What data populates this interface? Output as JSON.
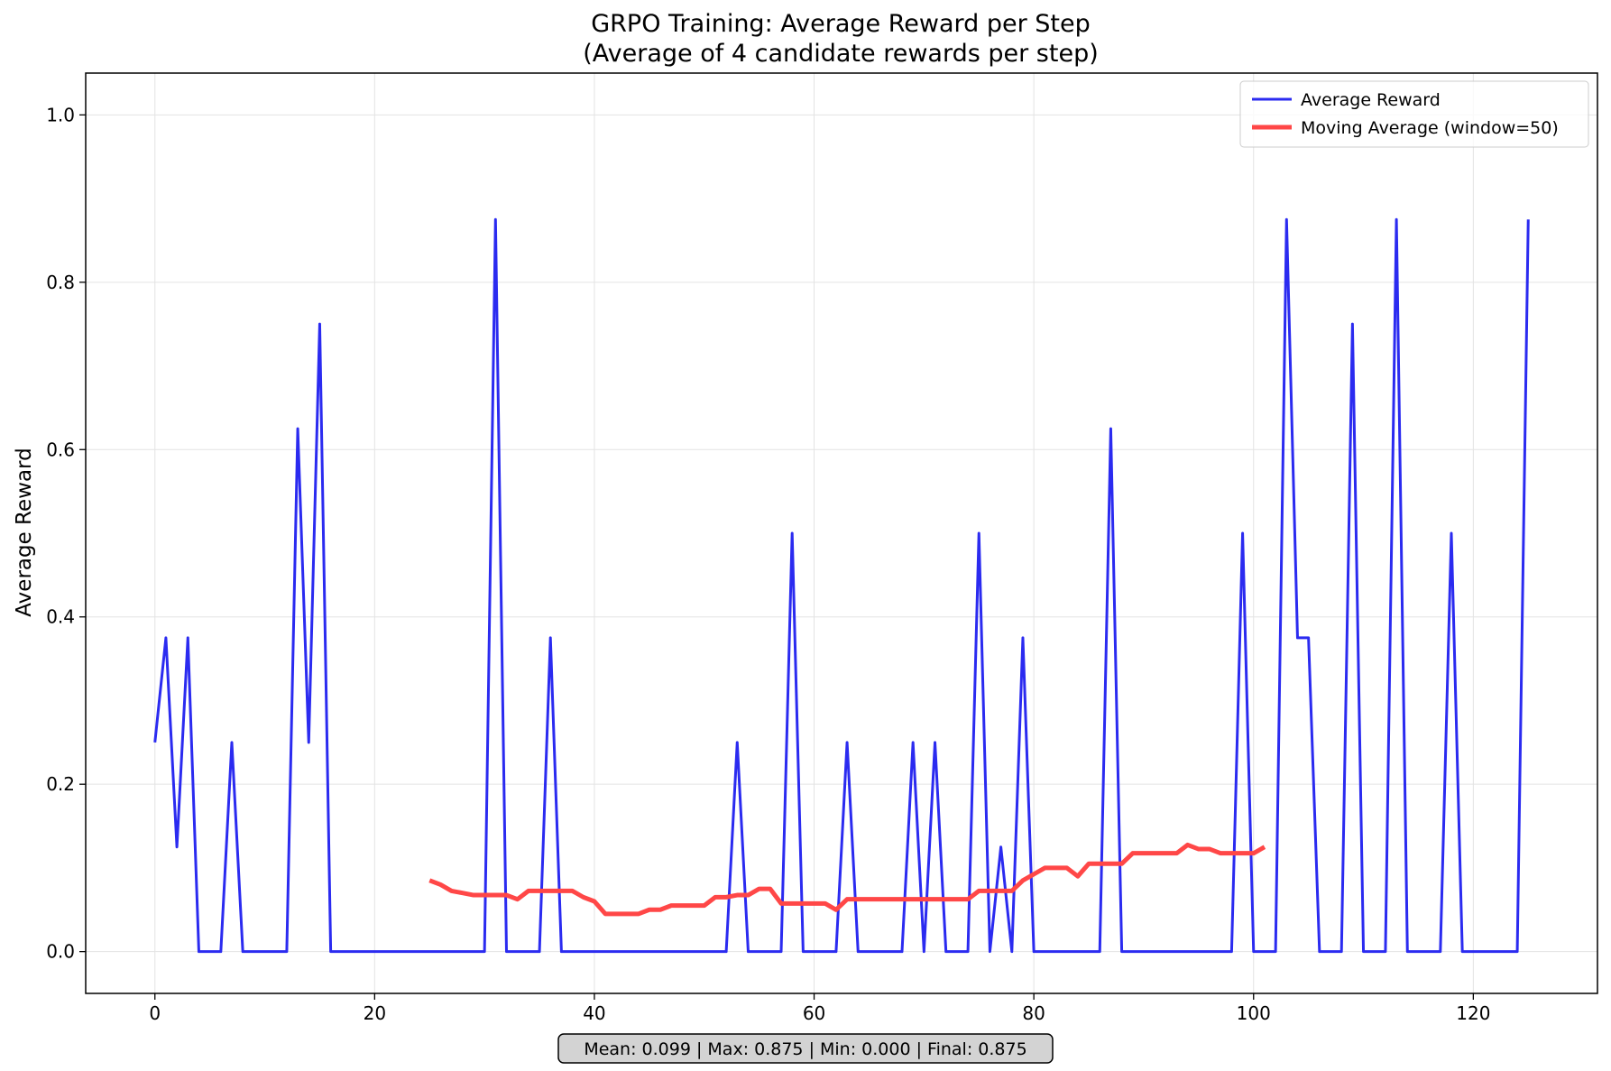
{
  "chart_data": {
    "type": "line",
    "title_line1": "GRPO Training: Average Reward per Step",
    "title_line2": "(Average of 4 candidate rewards per step)",
    "xlabel": "",
    "ylabel": "Average Reward",
    "xlim": [
      -6.3,
      131.3
    ],
    "ylim": [
      -0.05,
      1.05
    ],
    "xticks": [
      0,
      20,
      40,
      60,
      80,
      100,
      120
    ],
    "yticks": [
      0.0,
      0.2,
      0.4,
      0.6,
      0.8,
      1.0
    ],
    "xtick_labels": [
      "0",
      "20",
      "40",
      "60",
      "80",
      "100",
      "120"
    ],
    "ytick_labels": [
      "0.0",
      "0.2",
      "0.4",
      "0.6",
      "0.8",
      "1.0"
    ],
    "grid": true,
    "legend_position": "top-right",
    "series": [
      {
        "name": "Average Reward",
        "color": "#2b2bf0",
        "x": [
          0,
          1,
          2,
          3,
          4,
          5,
          6,
          7,
          8,
          9,
          10,
          11,
          12,
          13,
          14,
          15,
          16,
          17,
          18,
          19,
          20,
          21,
          22,
          23,
          24,
          25,
          26,
          27,
          28,
          29,
          30,
          31,
          32,
          33,
          34,
          35,
          36,
          37,
          38,
          39,
          40,
          41,
          42,
          43,
          44,
          45,
          46,
          47,
          48,
          49,
          50,
          51,
          52,
          53,
          54,
          55,
          56,
          57,
          58,
          59,
          60,
          61,
          62,
          63,
          64,
          65,
          66,
          67,
          68,
          69,
          70,
          71,
          72,
          73,
          74,
          75,
          76,
          77,
          78,
          79,
          80,
          81,
          82,
          83,
          84,
          85,
          86,
          87,
          88,
          89,
          90,
          91,
          92,
          93,
          94,
          95,
          96,
          97,
          98,
          99,
          100,
          101,
          102,
          103,
          104,
          105,
          106,
          107,
          108,
          109,
          110,
          111,
          112,
          113,
          114,
          115,
          116,
          117,
          118,
          119,
          120,
          121,
          122,
          123,
          124,
          125
        ],
        "y": [
          0.25,
          0.375,
          0.125,
          0.375,
          0,
          0,
          0,
          0.25,
          0,
          0,
          0,
          0,
          0,
          0.625,
          0.25,
          0.75,
          0,
          0,
          0,
          0,
          0,
          0,
          0,
          0,
          0,
          0,
          0,
          0,
          0,
          0,
          0,
          0.875,
          0,
          0,
          0,
          0,
          0.375,
          0,
          0,
          0,
          0,
          0,
          0,
          0,
          0,
          0,
          0,
          0,
          0,
          0,
          0,
          0,
          0,
          0.25,
          0,
          0,
          0,
          0,
          0.5,
          0,
          0,
          0,
          0,
          0.25,
          0,
          0,
          0,
          0,
          0,
          0.25,
          0,
          0.25,
          0,
          0,
          0,
          0.5,
          0,
          0.125,
          0,
          0.375,
          0,
          0,
          0,
          0,
          0,
          0,
          0,
          0.625,
          0,
          0,
          0,
          0,
          0,
          0,
          0,
          0,
          0,
          0,
          0,
          0.5,
          0,
          0,
          0,
          0.875,
          0.375,
          0.375,
          0,
          0,
          0,
          0.75,
          0,
          0,
          0,
          0.875,
          0,
          0,
          0,
          0,
          0.5,
          0,
          0,
          0,
          0,
          0,
          0,
          0.875
        ]
      },
      {
        "name": "Moving Average (window=50)",
        "color": "#ff4747",
        "x": [
          25,
          26,
          27,
          28,
          29,
          30,
          31,
          32,
          33,
          34,
          35,
          36,
          37,
          38,
          39,
          40,
          41,
          42,
          43,
          44,
          45,
          46,
          47,
          48,
          49,
          50,
          51,
          52,
          53,
          54,
          55,
          56,
          57,
          58,
          59,
          60,
          61,
          62,
          63,
          64,
          65,
          66,
          67,
          68,
          69,
          70,
          71,
          72,
          73,
          74,
          75,
          76,
          77,
          78,
          79,
          80,
          81,
          82,
          83,
          84,
          85,
          86,
          87,
          88,
          89,
          90,
          91,
          92,
          93,
          94,
          95,
          96,
          97,
          98,
          99,
          100,
          101
        ],
        "y": [
          0.085,
          0.08,
          0.0725,
          0.07,
          0.0675,
          0.0675,
          0.0675,
          0.0675,
          0.0625,
          0.0725,
          0.0725,
          0.0725,
          0.0725,
          0.0725,
          0.065,
          0.06,
          0.045,
          0.045,
          0.045,
          0.045,
          0.05,
          0.05,
          0.055,
          0.055,
          0.055,
          0.055,
          0.065,
          0.065,
          0.0675,
          0.0675,
          0.075,
          0.075,
          0.0575,
          0.0575,
          0.0575,
          0.0575,
          0.0575,
          0.05,
          0.0625,
          0.0625,
          0.0625,
          0.0625,
          0.0625,
          0.0625,
          0.0625,
          0.0625,
          0.0625,
          0.0625,
          0.0625,
          0.0625,
          0.0725,
          0.0725,
          0.0725,
          0.0725,
          0.085,
          0.0925,
          0.1,
          0.1,
          0.1,
          0.09,
          0.105,
          0.105,
          0.105,
          0.105,
          0.1175,
          0.1175,
          0.1175,
          0.1175,
          0.1175,
          0.1275,
          0.1225,
          0.1225,
          0.1175,
          0.1175,
          0.1175,
          0.1175,
          0.125
        ]
      }
    ],
    "stats_box": "Mean: 0.099 | Max: 0.875 | Min: 0.000 | Final: 0.875"
  }
}
